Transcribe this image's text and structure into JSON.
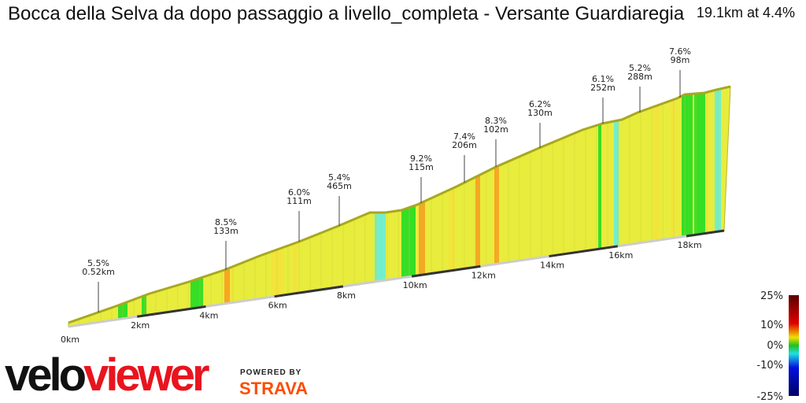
{
  "header": {
    "title": "Bocca della Selva da dopo passaggio a livello_completa - Versante Guardiaregia",
    "summary": "19.1km at 4.4%"
  },
  "chart_data": {
    "type": "area",
    "title": "Bocca della Selva da dopo passaggio a livello_completa - Versante Guardiaregia",
    "x_ticks": [
      "0km",
      "2km",
      "4km",
      "6km",
      "8km",
      "10km",
      "12km",
      "14km",
      "16km",
      "18km"
    ],
    "xlim": [
      0,
      19.1
    ],
    "annotations": [
      {
        "grade": "5.5%",
        "length": "0.52km"
      },
      {
        "grade": "8.5%",
        "length": "133m"
      },
      {
        "grade": "6.0%",
        "length": "111m"
      },
      {
        "grade": "5.4%",
        "length": "465m"
      },
      {
        "grade": "9.2%",
        "length": "115m"
      },
      {
        "grade": "7.4%",
        "length": "206m"
      },
      {
        "grade": "8.3%",
        "length": "102m"
      },
      {
        "grade": "6.2%",
        "length": "130m"
      },
      {
        "grade": "6.1%",
        "length": "252m"
      },
      {
        "grade": "5.2%",
        "length": "288m"
      },
      {
        "grade": "7.6%",
        "length": "98m"
      }
    ],
    "legend": {
      "labels": [
        "25%",
        "10%",
        "0%",
        "-10%",
        "-25%"
      ],
      "colors": [
        "#5a0000",
        "#e00000",
        "#f0e000",
        "#20c020",
        "#20e0e0",
        "#0010e0",
        "#000060"
      ]
    },
    "gradient_colors": {
      "flat": "#e8ec3c",
      "moderate": "#f2e43a",
      "steep": "#f7a020",
      "descent_mild": "#22dd22",
      "descent": "#66eedd"
    }
  },
  "branding": {
    "logo_velo": "velo",
    "logo_viewer": "viewer",
    "powered_by": "POWERED BY",
    "strava": "STRAVA"
  }
}
